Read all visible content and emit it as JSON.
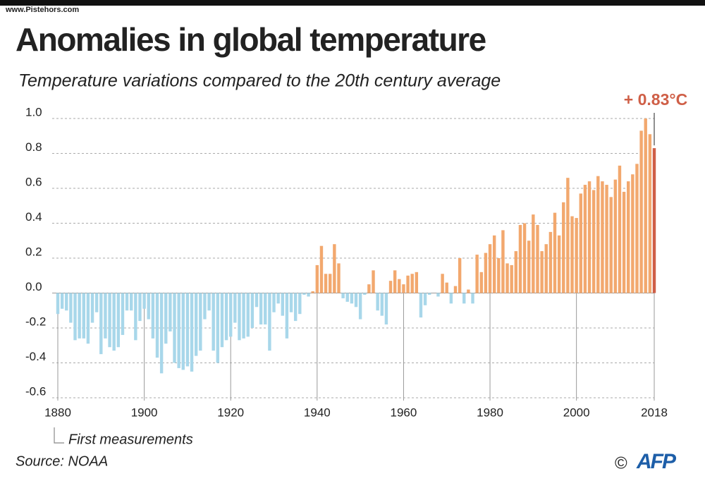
{
  "chart_data": {
    "type": "bar",
    "watermark": "www.Pistehors.com",
    "title": "Anomalies in global temperature",
    "subtitle": "Temperature variations compared to the 20th century average",
    "x": [
      1880,
      1881,
      1882,
      1883,
      1884,
      1885,
      1886,
      1887,
      1888,
      1889,
      1890,
      1891,
      1892,
      1893,
      1894,
      1895,
      1896,
      1897,
      1898,
      1899,
      1900,
      1901,
      1902,
      1903,
      1904,
      1905,
      1906,
      1907,
      1908,
      1909,
      1910,
      1911,
      1912,
      1913,
      1914,
      1915,
      1916,
      1917,
      1918,
      1919,
      1920,
      1921,
      1922,
      1923,
      1924,
      1925,
      1926,
      1927,
      1928,
      1929,
      1930,
      1931,
      1932,
      1933,
      1934,
      1935,
      1936,
      1937,
      1938,
      1939,
      1940,
      1941,
      1942,
      1943,
      1944,
      1945,
      1946,
      1947,
      1948,
      1949,
      1950,
      1951,
      1952,
      1953,
      1954,
      1955,
      1956,
      1957,
      1958,
      1959,
      1960,
      1961,
      1962,
      1963,
      1964,
      1965,
      1966,
      1967,
      1968,
      1969,
      1970,
      1971,
      1972,
      1973,
      1974,
      1975,
      1976,
      1977,
      1978,
      1979,
      1980,
      1981,
      1982,
      1983,
      1984,
      1985,
      1986,
      1987,
      1988,
      1989,
      1990,
      1991,
      1992,
      1993,
      1994,
      1995,
      1996,
      1997,
      1998,
      1999,
      2000,
      2001,
      2002,
      2003,
      2004,
      2005,
      2006,
      2007,
      2008,
      2009,
      2010,
      2011,
      2012,
      2013,
      2014,
      2015,
      2016,
      2017,
      2018
    ],
    "values": [
      -0.12,
      -0.09,
      -0.1,
      -0.17,
      -0.27,
      -0.26,
      -0.26,
      -0.29,
      -0.17,
      -0.11,
      -0.35,
      -0.26,
      -0.31,
      -0.33,
      -0.31,
      -0.24,
      -0.1,
      -0.1,
      -0.27,
      -0.16,
      -0.09,
      -0.15,
      -0.26,
      -0.37,
      -0.46,
      -0.29,
      -0.22,
      -0.4,
      -0.43,
      -0.44,
      -0.42,
      -0.45,
      -0.36,
      -0.33,
      -0.15,
      -0.1,
      -0.33,
      -0.4,
      -0.31,
      -0.27,
      -0.25,
      -0.17,
      -0.27,
      -0.26,
      -0.25,
      -0.2,
      -0.08,
      -0.18,
      -0.18,
      -0.33,
      -0.11,
      -0.06,
      -0.13,
      -0.26,
      -0.11,
      -0.16,
      -0.12,
      -0.01,
      -0.02,
      0.01,
      0.16,
      0.27,
      0.11,
      0.11,
      0.28,
      0.17,
      -0.03,
      -0.05,
      -0.06,
      -0.08,
      -0.15,
      -0.01,
      0.05,
      0.13,
      -0.1,
      -0.13,
      -0.18,
      0.07,
      0.13,
      0.08,
      0.05,
      0.1,
      0.11,
      0.12,
      -0.14,
      -0.07,
      -0.01,
      0.0,
      -0.02,
      0.11,
      0.06,
      -0.06,
      0.04,
      0.2,
      -0.06,
      0.02,
      -0.06,
      0.22,
      0.12,
      0.23,
      0.28,
      0.33,
      0.2,
      0.36,
      0.17,
      0.16,
      0.24,
      0.39,
      0.4,
      0.3,
      0.45,
      0.39,
      0.24,
      0.28,
      0.35,
      0.46,
      0.33,
      0.52,
      0.66,
      0.44,
      0.43,
      0.57,
      0.62,
      0.64,
      0.59,
      0.67,
      0.64,
      0.62,
      0.55,
      0.65,
      0.73,
      0.58,
      0.64,
      0.68,
      0.74,
      0.93,
      1.0,
      0.91,
      0.83
    ],
    "negative_color": "#a8d7ea",
    "positive_color": "#f2a86e",
    "highlight_color": "#cf5f47",
    "xlim": [
      1880,
      2018
    ],
    "xticks": [
      1880,
      1900,
      1920,
      1940,
      1960,
      1980,
      2000,
      2018
    ],
    "ylim": [
      -0.6,
      1.0
    ],
    "yticks": [
      {
        "value": 1.0,
        "label": "1.0"
      },
      0.8,
      0.6,
      0.4,
      0.2,
      {
        "value": 0,
        "label": "0.0"
      },
      -0.2,
      -0.4,
      -0.6
    ],
    "grid": true,
    "highlight_label": "+ 0.83°C",
    "annotation": "First measurements",
    "source": "Source: NOAA",
    "copyright": "©",
    "agency": "AFP"
  }
}
